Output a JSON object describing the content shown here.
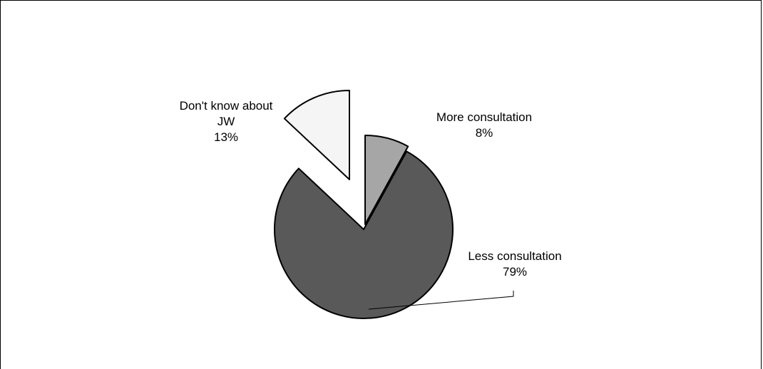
{
  "chart_data": {
    "type": "pie",
    "exploded": true,
    "start_angle_deg": 0,
    "slices": [
      {
        "label_lines": [
          "More consultation"
        ],
        "pct_text": "8%",
        "value": 8,
        "color": "#a6a6a6"
      },
      {
        "label_lines": [
          "Less consultation"
        ],
        "pct_text": "79%",
        "value": 79,
        "color": "#595959"
      },
      {
        "label_lines": [
          "Don't know about",
          "JW"
        ],
        "pct_text": "13%",
        "value": 13,
        "color": "#f5f5f5"
      }
    ]
  }
}
